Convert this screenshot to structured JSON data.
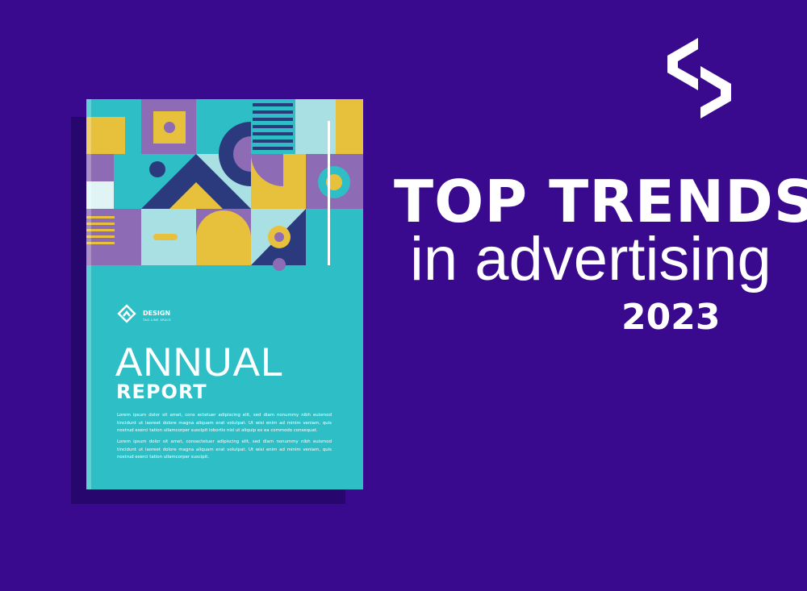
{
  "headline": {
    "line1": "TOP TRENDS",
    "line2": "in advertising",
    "year": "2023"
  },
  "book": {
    "logo": {
      "name": "DESIGN",
      "tagline": "TAG LINE SPACE"
    },
    "title": "ANNUAL",
    "subtitle": "REPORT",
    "paragraphs": [
      "Lorem ipsum dolor sit amet, cons ectetuer adipiscing elit, sed diam nonummy nibh euismod tincidunt ut laoreet dolore magna aliquam erat volutpat. Ut wisi enim ad minim veniam, quis nostrud exerci tation ullamcorper suscipit lobortis nisl ut aliquip ex ea commodo consequat.",
      "Lorem ipsum dolor sit amet, consectetuer adipiscing elit, sed diam nonummy nibh euismod tincidunt ut laoreet dolore magna aliquam erat volutpat. Ut wisi enim ad minim veniam, quis nostrud exerci tation ullamcorper suscipit."
    ]
  }
}
